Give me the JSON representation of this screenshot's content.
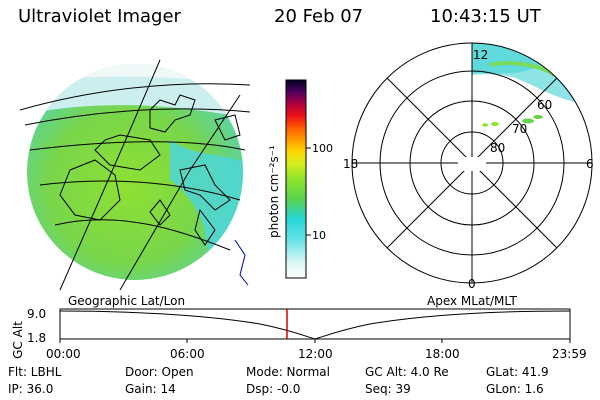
{
  "header": {
    "instrument": "Ultraviolet Imager",
    "date": "20 Feb 07",
    "time": "10:43:15 UT"
  },
  "colorbar": {
    "label": "photon cm⁻²s⁻¹",
    "ticks": [
      "100",
      "10"
    ],
    "colors": [
      "#d9f5f5",
      "#a8ecec",
      "#5fe1e6",
      "#28d6d6",
      "#3cd08a",
      "#6bd24a",
      "#8ee42c",
      "#c8ee1e",
      "#eef20e",
      "#ffd400",
      "#ff9a00",
      "#ff5a00",
      "#e8101a",
      "#b00020",
      "#7a0040",
      "#3c0050",
      "#000020"
    ]
  },
  "polar_plot": {
    "mlt_labels": [
      "12",
      "18",
      "6",
      "0"
    ],
    "lat_labels": [
      "60",
      "70",
      "80"
    ]
  },
  "timeline": {
    "left_label": "Geographic Lat/Lon",
    "right_label": "Apex MLat/MLT",
    "axis_label": "GC Alt",
    "y_ticks": [
      "9.0",
      "1.8"
    ],
    "time_ticks": [
      "00:00",
      "06:00",
      "12:00",
      "18:00",
      "23:59"
    ],
    "current_time": "10:43",
    "marker_color": "#d00000"
  },
  "info": {
    "filter": "Flt: LBHL",
    "ip": "IP: 36.0",
    "door": "Door: Open",
    "gain": "Gain: 14",
    "mode": "Mode: Normal",
    "dsp": "Dsp:   -0.0",
    "gc_alt": "GC Alt: 4.0 Re",
    "seq": "Seq: 39",
    "glat": "GLat:  41.9",
    "glon": "GLon:   1.6"
  }
}
